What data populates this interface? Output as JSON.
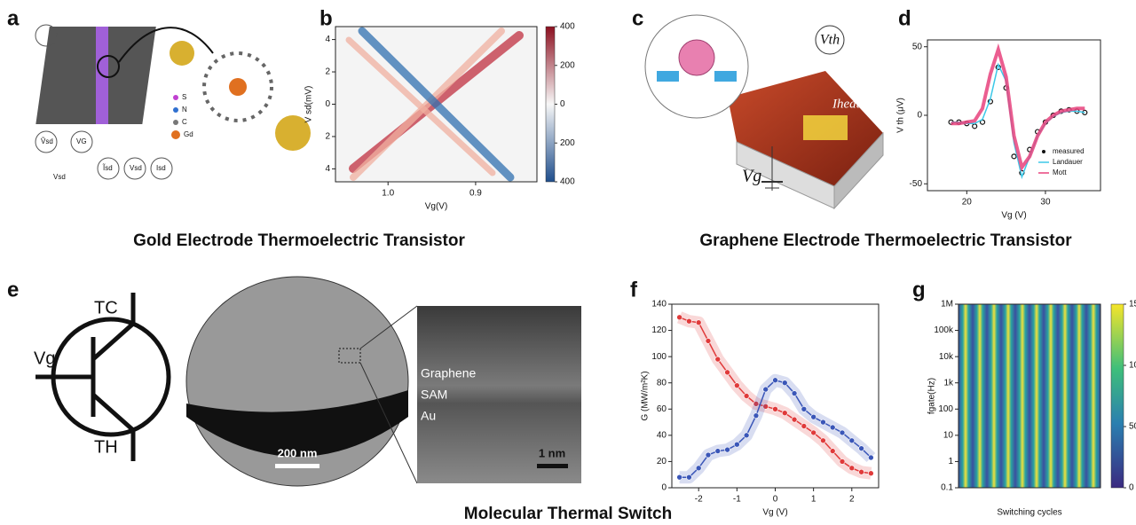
{
  "captions": [
    "Gold Electrode Thermoelectric Transistor",
    "Graphene Electrode Thermoelectric Transistor",
    "Molecular Thermal Switch"
  ],
  "panel_labels": [
    "a",
    "b",
    "c",
    "d",
    "e",
    "f",
    "g"
  ],
  "panel_a": {
    "legend": [
      "S",
      "N",
      "C",
      "Gd"
    ],
    "labels": [
      "Vsd",
      "VG",
      "Vsd",
      "Ṽsd",
      "Ĩsd",
      "Isd"
    ]
  },
  "panel_c": {
    "labels": [
      "Vth",
      "Iheat",
      "Vg"
    ]
  },
  "panel_e": {
    "labels": [
      "TC",
      "Vg",
      "TH",
      "Graphene",
      "SAM",
      "Au",
      "200 nm",
      "1 nm"
    ]
  },
  "chart_data": [
    {
      "type": "heatmap",
      "xlabel": "Vg(V)",
      "ylabel": "V sd(mV)",
      "xlim": [
        1.06,
        0.83
      ],
      "xticks": [
        {
          "value": 1,
          "label": "1.0"
        },
        0.9
      ],
      "ylim": [
        -4.8,
        4.8
      ],
      "yticks": [
        4,
        2,
        0,
        {
          "value": -2,
          "label": "2"
        },
        {
          "value": -4,
          "label": "4"
        }
      ],
      "clim": [
        -400,
        400
      ],
      "cticks": [
        400,
        200,
        0,
        {
          "value": -200,
          "label": "200"
        },
        {
          "value": -400,
          "label": "400"
        }
      ]
    },
    {
      "type": "line",
      "xlabel": "Vg (V)",
      "ylabel": "V th (μV)",
      "xlim": [
        15,
        37
      ],
      "xticks": [
        20,
        30
      ],
      "ylim": [
        -55,
        55
      ],
      "yticks": [
        -50,
        0,
        50
      ],
      "legend": "lower right",
      "x": [
        18,
        19,
        20,
        21,
        22,
        23,
        24,
        25,
        26,
        27,
        28,
        29,
        30,
        31,
        32,
        33,
        34,
        35
      ],
      "series": [
        {
          "name": "measured",
          "color": "#111111",
          "marker": "circle",
          "values": [
            -5,
            -5,
            -6,
            -8,
            -5,
            10,
            35,
            20,
            -30,
            -42,
            -25,
            -12,
            -5,
            0,
            3,
            4,
            3,
            2
          ]
        },
        {
          "name": "Landauer",
          "color": "#3cc8e8",
          "values": [
            -5,
            -5,
            -6,
            -6,
            -3,
            12,
            37,
            25,
            -20,
            -45,
            -30,
            -15,
            -6,
            -1,
            2,
            3,
            3,
            2
          ]
        },
        {
          "name": "Mott",
          "color": "#e8427c",
          "values": [
            -6,
            -6,
            -5,
            -4,
            5,
            30,
            48,
            28,
            -15,
            -38,
            -30,
            -15,
            -5,
            0,
            3,
            4,
            5,
            5
          ]
        }
      ]
    },
    {
      "type": "line",
      "xlabel": "Vg (V)",
      "ylabel": "G (MW/m²K)",
      "xlim": [
        -2.7,
        2.7
      ],
      "xticks": [
        -2,
        -1,
        0,
        1,
        2
      ],
      "ylim": [
        0,
        140
      ],
      "yticks": [
        0,
        20,
        40,
        60,
        80,
        100,
        120,
        140
      ],
      "x": [
        -2.5,
        -2.25,
        -2,
        -1.75,
        -1.5,
        -1.25,
        -1,
        -0.75,
        -0.5,
        -0.25,
        0,
        0.25,
        0.5,
        0.75,
        1,
        1.25,
        1.5,
        1.75,
        2,
        2.25,
        2.5
      ],
      "series": [
        {
          "color": "#e03a3a",
          "marker": "circle",
          "values": [
            130,
            127,
            126,
            112,
            98,
            88,
            78,
            70,
            64,
            62,
            60,
            57,
            52,
            47,
            42,
            36,
            28,
            20,
            15,
            12,
            11
          ]
        },
        {
          "color": "#3a56b8",
          "marker": "circle",
          "values": [
            8,
            8,
            15,
            25,
            28,
            29,
            33,
            40,
            55,
            75,
            82,
            80,
            72,
            60,
            54,
            50,
            46,
            42,
            36,
            30,
            23
          ]
        }
      ]
    },
    {
      "type": "heatmap",
      "xlabel": "Switching cycles",
      "ylabel": "fgate(Hz)",
      "yscale": "log",
      "ylim": [
        0.1,
        1000000
      ],
      "yticks": [
        0.1,
        1,
        10,
        100,
        {
          "value": 1000,
          "label": "1k"
        },
        {
          "value": 10000,
          "label": "10k"
        },
        {
          "value": 100000,
          "label": "100k"
        },
        {
          "value": 1000000,
          "label": "1M"
        }
      ],
      "clim": [
        0,
        150
      ],
      "cticks": [
        0,
        50,
        100,
        150
      ]
    }
  ]
}
